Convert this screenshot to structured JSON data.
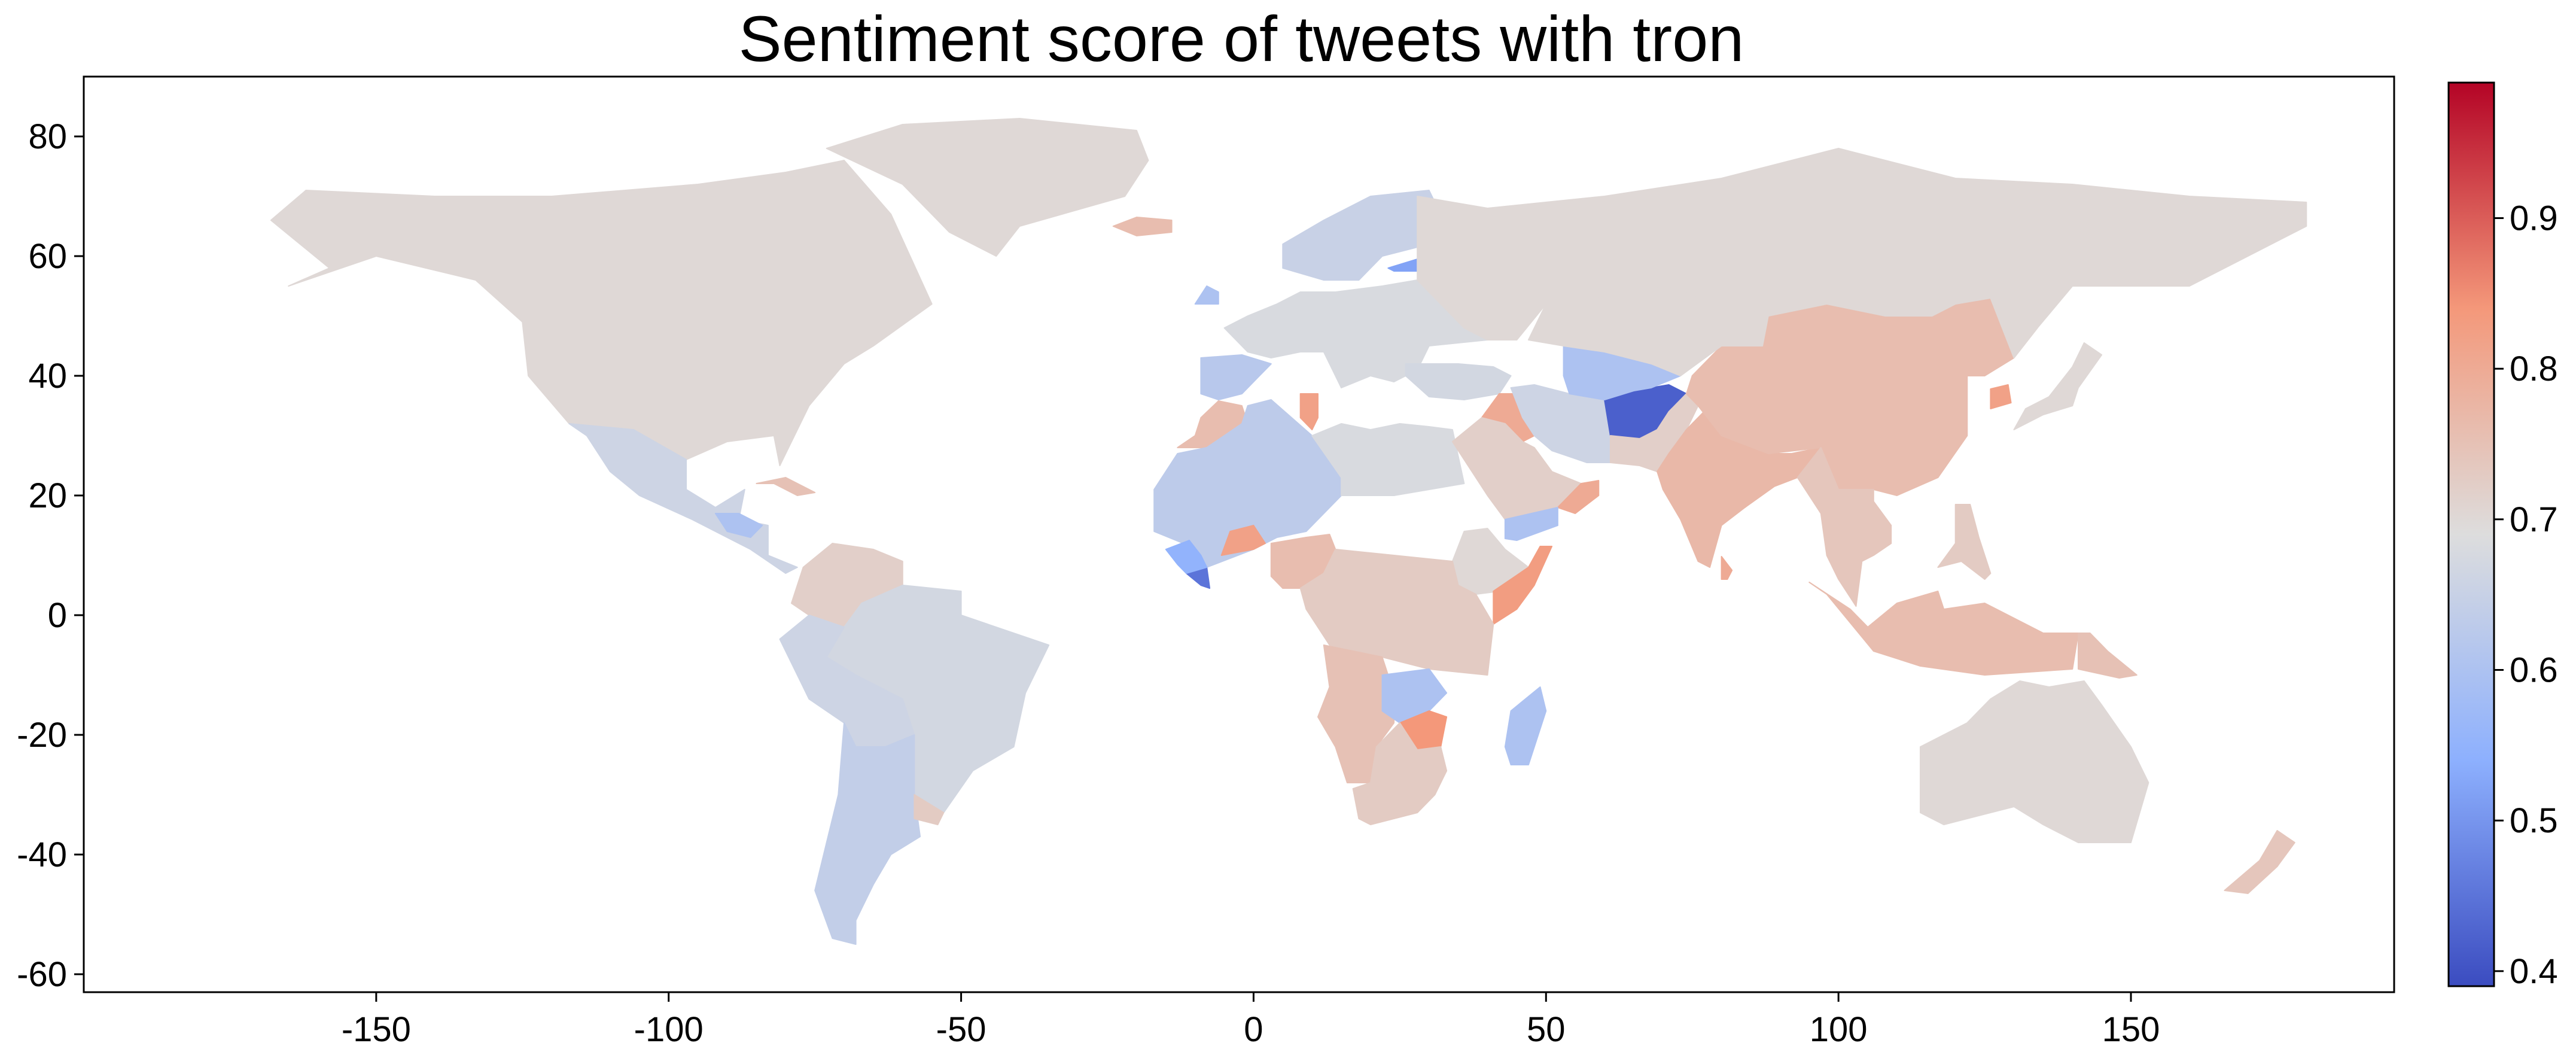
{
  "chart_data": {
    "type": "choropleth-map",
    "title": "Sentiment score of tweets with tron",
    "xlabel": "",
    "ylabel": "",
    "x_range": [
      -200,
      195
    ],
    "y_range": [
      -63,
      90
    ],
    "x_ticks": [
      -150,
      -100,
      -50,
      0,
      50,
      100,
      150
    ],
    "y_ticks": [
      -60,
      -40,
      -20,
      0,
      20,
      40,
      60,
      80
    ],
    "x_tick_labels": [
      "-150",
      "-100",
      "-50",
      "0",
      "50",
      "100",
      "150"
    ],
    "y_tick_labels": [
      "-60",
      "-40",
      "-20",
      "0",
      "20",
      "40",
      "60",
      "80"
    ],
    "colorbar": {
      "colormap": "coolwarm",
      "min": 0.39,
      "max": 0.99,
      "ticks": [
        0.4,
        0.5,
        0.6,
        0.7,
        0.8,
        0.9
      ],
      "tick_labels": [
        "0.4",
        "0.5",
        "0.6",
        "0.7",
        "0.8",
        "0.9"
      ]
    },
    "regions": [
      {
        "name": "North America (Canada, USA)",
        "value": 0.7
      },
      {
        "name": "Greenland",
        "value": 0.7
      },
      {
        "name": "Mexico & Central America",
        "value": 0.66
      },
      {
        "name": "Guatemala / Honduras",
        "value": 0.6
      },
      {
        "name": "Cuba",
        "value": 0.75
      },
      {
        "name": "Colombia / Venezuela",
        "value": 0.72
      },
      {
        "name": "Brazil",
        "value": 0.67
      },
      {
        "name": "Peru / Bolivia",
        "value": 0.66
      },
      {
        "name": "Argentina / Chile",
        "value": 0.64
      },
      {
        "name": "Uruguay",
        "value": 0.73
      },
      {
        "name": "Iceland",
        "value": 0.76
      },
      {
        "name": "Scandinavia",
        "value": 0.65
      },
      {
        "name": "Estonia",
        "value": 0.52
      },
      {
        "name": "Europe (rest)",
        "value": 0.68
      },
      {
        "name": "Ireland",
        "value": 0.6
      },
      {
        "name": "Iberia",
        "value": 0.62
      },
      {
        "name": "Morocco",
        "value": 0.76
      },
      {
        "name": "Tunisia",
        "value": 0.82
      },
      {
        "name": "Sahara / West Africa",
        "value": 0.63
      },
      {
        "name": "Egypt / Libya",
        "value": 0.68
      },
      {
        "name": "Liberia",
        "value": 0.45
      },
      {
        "name": "Sierra Leone / Guinea",
        "value": 0.55
      },
      {
        "name": "Burkina Faso",
        "value": 0.82
      },
      {
        "name": "Nigeria",
        "value": 0.76
      },
      {
        "name": "Ethiopia",
        "value": 0.7
      },
      {
        "name": "Somalia",
        "value": 0.83
      },
      {
        "name": "Central Africa",
        "value": 0.73
      },
      {
        "name": "Angola / Namibia",
        "value": 0.75
      },
      {
        "name": "Zambia",
        "value": 0.6
      },
      {
        "name": "Zimbabwe",
        "value": 0.84
      },
      {
        "name": "South Africa",
        "value": 0.73
      },
      {
        "name": "Madagascar",
        "value": 0.6
      },
      {
        "name": "Turkey",
        "value": 0.67
      },
      {
        "name": "Iraq",
        "value": 0.8
      },
      {
        "name": "Saudi Arabia / Gulf",
        "value": 0.72
      },
      {
        "name": "Oman",
        "value": 0.8
      },
      {
        "name": "Yemen",
        "value": 0.6
      },
      {
        "name": "Iran",
        "value": 0.66
      },
      {
        "name": "Afghanistan",
        "value": 0.42
      },
      {
        "name": "Turkmenistan / Uzbekistan",
        "value": 0.6
      },
      {
        "name": "Pakistan",
        "value": 0.72
      },
      {
        "name": "India",
        "value": 0.77
      },
      {
        "name": "Sri Lanka",
        "value": 0.8
      },
      {
        "name": "China / Mongolia",
        "value": 0.76
      },
      {
        "name": "South Korea",
        "value": 0.82
      },
      {
        "name": "Japan",
        "value": 0.7
      },
      {
        "name": "Russia",
        "value": 0.7
      },
      {
        "name": "Kazakhstan",
        "value": 0.7
      },
      {
        "name": "Southeast Asia",
        "value": 0.74
      },
      {
        "name": "Indonesia",
        "value": 0.76
      },
      {
        "name": "Philippines",
        "value": 0.73
      },
      {
        "name": "Papua New Guinea",
        "value": 0.75
      },
      {
        "name": "Australia",
        "value": 0.7
      },
      {
        "name": "New Zealand",
        "value": 0.74
      }
    ]
  }
}
